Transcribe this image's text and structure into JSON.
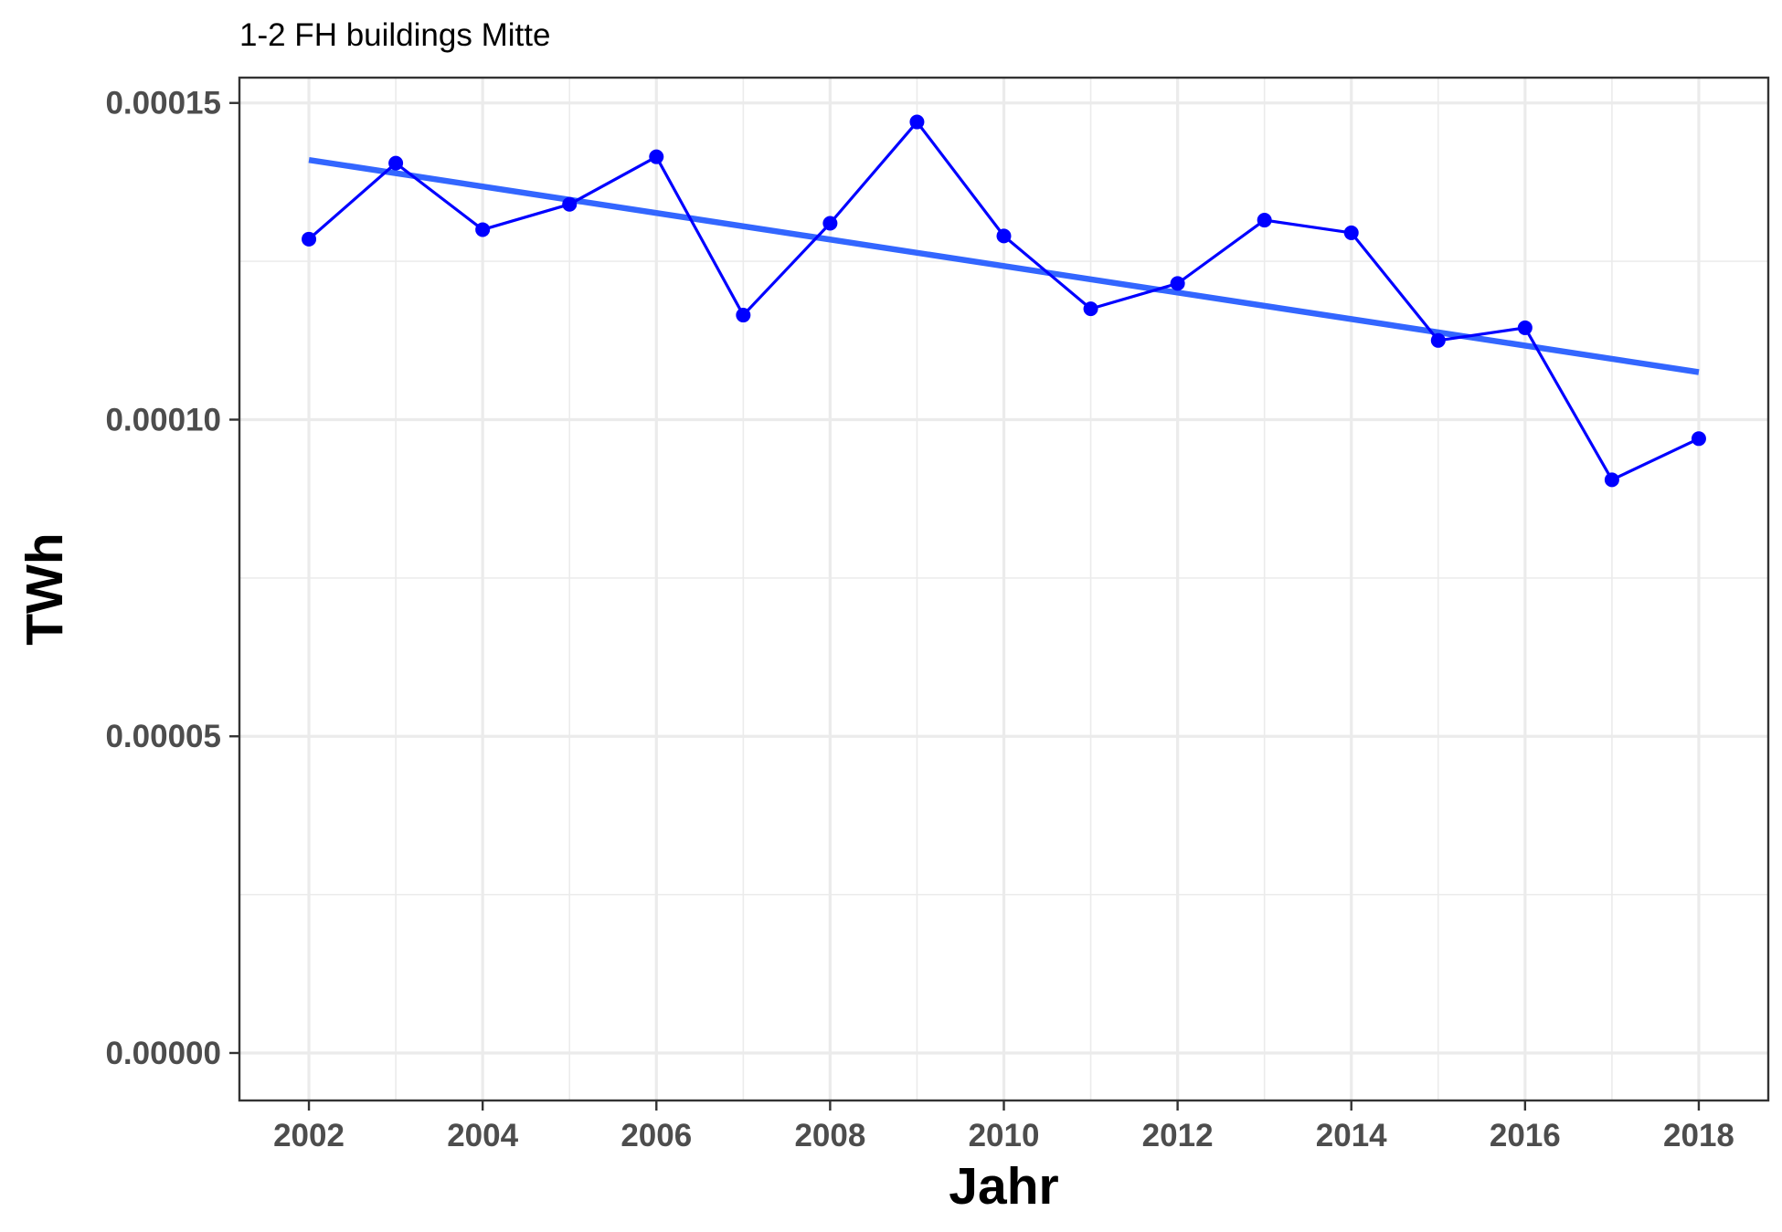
{
  "chart_data": {
    "type": "line",
    "title": "1-2 FH buildings Mitte",
    "xlabel": "Jahr",
    "ylabel": "TWh",
    "xlim": [
      2001.2,
      2018.8
    ],
    "ylim": [
      -7.5e-06,
      0.000154
    ],
    "x_ticks": [
      2002,
      2004,
      2006,
      2008,
      2010,
      2012,
      2014,
      2016,
      2018
    ],
    "y_ticks": [
      0.0,
      5e-05,
      0.0001,
      0.00015
    ],
    "y_tick_labels": [
      "0.00000",
      "0.00005",
      "0.00010",
      "0.00015"
    ],
    "grid": true,
    "legend": "none",
    "series": [
      {
        "color": "#0000ff",
        "marker": "circle",
        "x": [
          2002,
          2003,
          2004,
          2005,
          2006,
          2007,
          2008,
          2009,
          2010,
          2011,
          2012,
          2013,
          2014,
          2015,
          2016,
          2017,
          2018
        ],
        "y": [
          0.0001285,
          0.0001405,
          0.00013,
          0.000134,
          0.0001415,
          0.0001165,
          0.000131,
          0.000147,
          0.000129,
          0.0001175,
          0.0001215,
          0.0001315,
          0.0001295,
          0.0001125,
          0.0001145,
          9.05e-05,
          9.7e-05
        ]
      }
    ],
    "trend_line": {
      "color": "#3366ff",
      "x": [
        2002,
        2018
      ],
      "y": [
        0.000141,
        0.0001075
      ]
    }
  }
}
